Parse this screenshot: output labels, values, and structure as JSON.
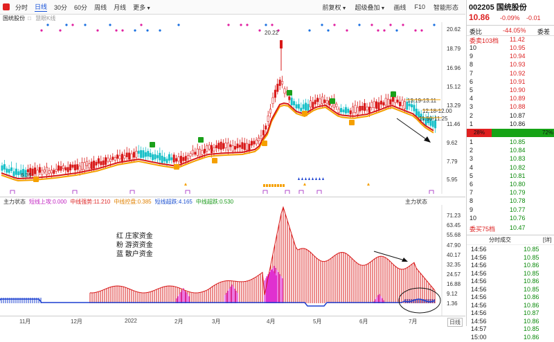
{
  "toolbar": {
    "items": [
      "分时",
      "日线",
      "30分",
      "60分",
      "周线",
      "月线",
      "更多"
    ],
    "right_items": [
      "前复权",
      "超级叠加",
      "画线",
      "F10",
      "智能形态"
    ]
  },
  "row2": {
    "stock": "国统股份",
    "indicator": "慧眼K线"
  },
  "main_axis": {
    "labels": [
      "20.62",
      "18.79",
      "16.96",
      "15.12",
      "13.29",
      "11.46",
      "9.62",
      "7.79",
      "5.95"
    ]
  },
  "annotations": {
    "high": "20.22",
    "low": "6.35",
    "r1": "13.19-13.11",
    "r2": "12.18-12.00",
    "r3": "11.50-11.25"
  },
  "indicator_row": {
    "name": "主力状态",
    "v1": "短线上攻:0.000",
    "v2": "中线强势:11.210",
    "v3": "中线控盘:0.385",
    "v4": "短线超跌:4.165",
    "v5": "中线超跌:0.530",
    "right": "主力状态"
  },
  "sub_axis": {
    "labels": [
      "71.23",
      "63.45",
      "55.68",
      "47.90",
      "40.17",
      "32.35",
      "24.57",
      "16.88",
      "9.12",
      "1.36"
    ]
  },
  "legend": {
    "l1": "红 庄家资金",
    "l2": "粉 游资资金",
    "l3": "蓝 散户资金"
  },
  "xaxis": {
    "labels": [
      "11月",
      "12月",
      "2022",
      "2月",
      "3月",
      "4月",
      "5月",
      "6月",
      "7月"
    ],
    "right": "日线"
  },
  "panel": {
    "code": "002205",
    "name": "国统股份",
    "price": "10.86",
    "pct": "-0.09%",
    "chg": "-0.01",
    "ratio_label": "委比",
    "ratio": "-44.05%",
    "diff_label": "委差",
    "sell_label": "委卖103档",
    "sell_top": "11.42",
    "sell": [
      {
        "lv": "10",
        "p": "10.95"
      },
      {
        "lv": "9",
        "p": "10.94"
      },
      {
        "lv": "8",
        "p": "10.93"
      },
      {
        "lv": "7",
        "p": "10.92"
      },
      {
        "lv": "6",
        "p": "10.91"
      },
      {
        "lv": "5",
        "p": "10.90"
      },
      {
        "lv": "4",
        "p": "10.89"
      },
      {
        "lv": "3",
        "p": "10.88"
      },
      {
        "lv": "2",
        "p": "10.87"
      },
      {
        "lv": "1",
        "p": "10.86"
      }
    ],
    "bar_left": "28%",
    "bar_right": "72%",
    "buy": [
      {
        "lv": "1",
        "p": "10.85"
      },
      {
        "lv": "2",
        "p": "10.84"
      },
      {
        "lv": "3",
        "p": "10.83"
      },
      {
        "lv": "4",
        "p": "10.82"
      },
      {
        "lv": "5",
        "p": "10.81"
      },
      {
        "lv": "6",
        "p": "10.80"
      },
      {
        "lv": "7",
        "p": "10.79"
      },
      {
        "lv": "8",
        "p": "10.78"
      },
      {
        "lv": "9",
        "p": "10.77"
      },
      {
        "lv": "10",
        "p": "10.76"
      }
    ],
    "buy_label": "委买75档",
    "buy_bottom": "10.47",
    "trades_title": "分时成交",
    "trades_btn": "[详]",
    "trades": [
      {
        "t": "14:56",
        "p": "10.85"
      },
      {
        "t": "14:56",
        "p": "10.85"
      },
      {
        "t": "14:56",
        "p": "10.86"
      },
      {
        "t": "14:56",
        "p": "10.85"
      },
      {
        "t": "14:56",
        "p": "10.86"
      },
      {
        "t": "14:56",
        "p": "10.85"
      },
      {
        "t": "14:56",
        "p": "10.86"
      },
      {
        "t": "14:56",
        "p": "10.86"
      },
      {
        "t": "14:56",
        "p": "10.87"
      },
      {
        "t": "14:56",
        "p": "10.86"
      },
      {
        "t": "14:57",
        "p": "10.85"
      },
      {
        "t": "15:00",
        "p": "10.86"
      }
    ]
  }
}
